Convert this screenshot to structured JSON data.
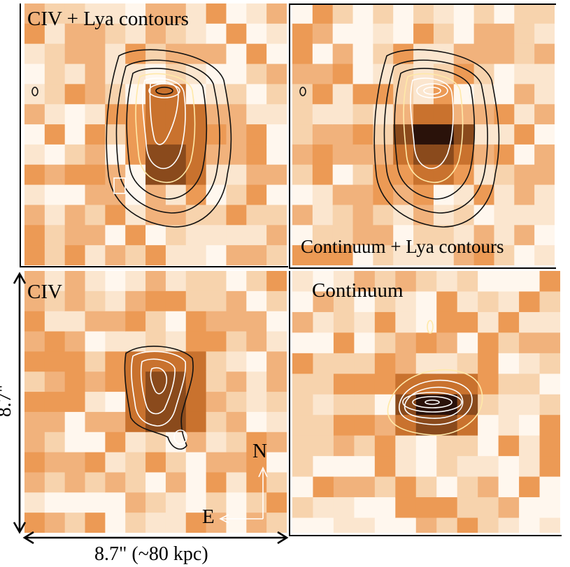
{
  "panels": {
    "top_left": {
      "label": "CIV + Lya contours"
    },
    "top_right": {
      "label": "Continuum + Lya contours"
    },
    "bottom_left": {
      "label": "CIV"
    },
    "bottom_right": {
      "label": "Continuum"
    }
  },
  "scale": {
    "horizontal": "8.7\" (~80 kpc)",
    "vertical": "8.7\""
  },
  "compass": {
    "north": "N",
    "east": "E"
  },
  "colors": {
    "base": "#f1b27c",
    "light": "#f7d3ad",
    "lighter": "#fbe6cf",
    "white": "#fff7ee",
    "mid": "#ec9a55",
    "dark": "#c9722e",
    "darker": "#8a4a1c",
    "darkest": "#2a120a",
    "contour_black": "#111111",
    "contour_white": "#ffffff",
    "contour_yellow": "#ffe9a8"
  }
}
